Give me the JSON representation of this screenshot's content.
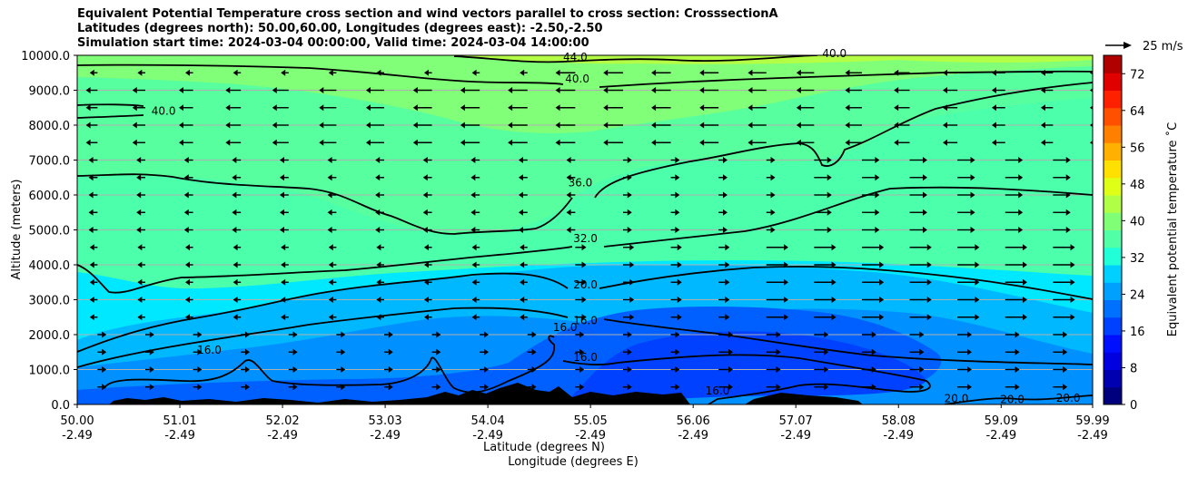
{
  "chart_data": {
    "type": "contourf",
    "title_lines": [
      "Equivalent Potential Temperature cross section and wind vectors parallel to cross section: CrosssectionA",
      "Latitudes (degrees north): 50.00,60.00, Longitudes (degrees east): -2.50,-2.50",
      "Simulation start time: 2024-03-04 00:00:00, Valid time: 2024-03-04 14:00:00"
    ],
    "xlabel_lines": [
      "Latitude (degrees N)",
      "Longitude (degrees E)"
    ],
    "ylabel": "Altitude (meters)",
    "xlim": [
      50.0,
      59.99
    ],
    "ylim": [
      0,
      10000
    ],
    "x_ticks": [
      {
        "lat": "50.00",
        "lon": "-2.49",
        "v": 50.0
      },
      {
        "lat": "51.01",
        "lon": "-2.49",
        "v": 51.01
      },
      {
        "lat": "52.02",
        "lon": "-2.49",
        "v": 52.02
      },
      {
        "lat": "53.03",
        "lon": "-2.49",
        "v": 53.03
      },
      {
        "lat": "54.04",
        "lon": "-2.49",
        "v": 54.04
      },
      {
        "lat": "55.05",
        "lon": "-2.49",
        "v": 55.05
      },
      {
        "lat": "56.06",
        "lon": "-2.49",
        "v": 56.06
      },
      {
        "lat": "57.07",
        "lon": "-2.49",
        "v": 57.07
      },
      {
        "lat": "58.08",
        "lon": "-2.49",
        "v": 58.08
      },
      {
        "lat": "59.09",
        "lon": "-2.49",
        "v": 59.09
      },
      {
        "lat": "59.99",
        "lon": "-2.49",
        "v": 59.99
      }
    ],
    "y_ticks": [
      {
        "label": "0.0",
        "v": 0
      },
      {
        "label": "1000.0",
        "v": 1000
      },
      {
        "label": "2000.0",
        "v": 2000
      },
      {
        "label": "3000.0",
        "v": 3000
      },
      {
        "label": "4000.0",
        "v": 4000
      },
      {
        "label": "5000.0",
        "v": 5000
      },
      {
        "label": "6000.0",
        "v": 6000
      },
      {
        "label": "7000.0",
        "v": 7000
      },
      {
        "label": "8000.0",
        "v": 8000
      },
      {
        "label": "9000.0",
        "v": 9000
      },
      {
        "label": "10000.0",
        "v": 10000
      }
    ],
    "colorbar": {
      "label": "Equivalent potential temperature $^\\circ$C",
      "label_display": "Equivalent potential temperature ˚C",
      "range": [
        0,
        76
      ],
      "ticks": [
        0,
        8,
        16,
        24,
        32,
        40,
        48,
        56,
        64,
        72
      ],
      "colors": [
        "#00007f",
        "#0000b0",
        "#0000e0",
        "#0010ff",
        "#0040ff",
        "#0070ff",
        "#00a0ff",
        "#00d0ff",
        "#20ffd8",
        "#50ffa6",
        "#80ff76",
        "#b0ff46",
        "#e0ff16",
        "#ffe000",
        "#ffb000",
        "#ff8000",
        "#ff5000",
        "#ff2000",
        "#e00000",
        "#b00000"
      ]
    },
    "quiver_key": {
      "label": "25 m/s",
      "value": 25
    },
    "contour_labels": [
      {
        "text": "44.0",
        "lat": 54.9,
        "z": 9850
      },
      {
        "text": "40.0",
        "lat": 57.45,
        "z": 9950
      },
      {
        "text": "40.0",
        "lat": 54.92,
        "z": 9220
      },
      {
        "text": "40.0",
        "lat": 50.85,
        "z": 8300
      },
      {
        "text": "36.0",
        "lat": 54.95,
        "z": 6250
      },
      {
        "text": "32.0",
        "lat": 55.0,
        "z": 4650
      },
      {
        "text": "20.0",
        "lat": 55.0,
        "z": 3320
      },
      {
        "text": "16.0",
        "lat": 55.0,
        "z": 2300
      },
      {
        "text": "16.0",
        "lat": 54.8,
        "z": 2100
      },
      {
        "text": "16.0",
        "lat": 51.3,
        "z": 1450
      },
      {
        "text": "16.0",
        "lat": 55.0,
        "z": 1250
      },
      {
        "text": "16.0",
        "lat": 56.3,
        "z": 280
      },
      {
        "text": "20.0",
        "lat": 58.65,
        "z": 60
      },
      {
        "text": "20.0",
        "lat": 59.2,
        "z": 40
      },
      {
        "text": "20.0",
        "lat": 59.75,
        "z": 80
      }
    ]
  }
}
